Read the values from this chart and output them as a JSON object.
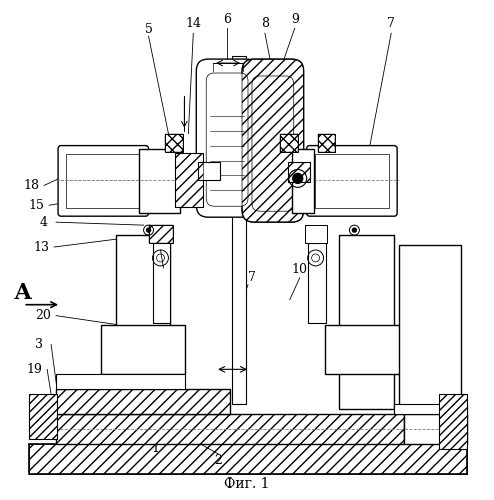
{
  "title": "Фиг. 1",
  "bg_color": "#ffffff",
  "figsize": [
    4.94,
    5.0
  ],
  "dpi": 100
}
